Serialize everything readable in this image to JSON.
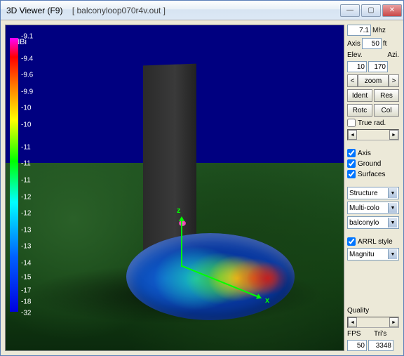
{
  "window": {
    "title": "3D Viewer (F9)",
    "filename": "[  balconyloop070r4v.out ]"
  },
  "colorbar": {
    "unit": "dBi",
    "gradient_stops": [
      {
        "pct": 0,
        "c": "#ff00ff"
      },
      {
        "pct": 7,
        "c": "#ff0000"
      },
      {
        "pct": 18,
        "c": "#ff8000"
      },
      {
        "pct": 30,
        "c": "#ffff00"
      },
      {
        "pct": 45,
        "c": "#00ff00"
      },
      {
        "pct": 60,
        "c": "#00ffff"
      },
      {
        "pct": 80,
        "c": "#0060ff"
      },
      {
        "pct": 100,
        "c": "#0000e0"
      }
    ],
    "ticks": [
      {
        "v": "-9.1",
        "p": 0
      },
      {
        "v": "-9.4",
        "p": 8
      },
      {
        "v": "-9.6",
        "p": 14
      },
      {
        "v": "-9.9",
        "p": 20
      },
      {
        "v": "-10",
        "p": 26
      },
      {
        "v": "-10",
        "p": 32
      },
      {
        "v": "-11",
        "p": 40
      },
      {
        "v": "-11",
        "p": 46
      },
      {
        "v": "-11",
        "p": 52
      },
      {
        "v": "-12",
        "p": 58
      },
      {
        "v": "-12",
        "p": 64
      },
      {
        "v": "-13",
        "p": 70
      },
      {
        "v": "-13",
        "p": 76
      },
      {
        "v": "-14",
        "p": 82
      },
      {
        "v": "-15",
        "p": 87
      },
      {
        "v": "-17",
        "p": 92
      },
      {
        "v": "-18",
        "p": 96
      },
      {
        "v": "-32",
        "p": 100
      }
    ]
  },
  "controls": {
    "freq": {
      "value": "7.1",
      "unit": "Mhz"
    },
    "axis": {
      "label": "Axis",
      "value": "50",
      "unit": "ft"
    },
    "elev": {
      "label": "Elev.",
      "value": "10"
    },
    "azi": {
      "label": "Azi.",
      "value": "170"
    },
    "zoom": {
      "left": "<",
      "mid": "zoom",
      "right": ">"
    },
    "ident": "Ident",
    "res": "Res",
    "rotc": "Rotc",
    "col": "Col",
    "truerad": {
      "label": "True rad.",
      "checked": false
    },
    "show_axis": {
      "label": "Axis",
      "checked": true
    },
    "show_ground": {
      "label": "Ground",
      "checked": true
    },
    "show_surfaces": {
      "label": "Surfaces",
      "checked": true
    },
    "structure": "Structure",
    "multicolor": "Multi-colo",
    "filename": "balconylo",
    "arrl": {
      "label": "ARRL style",
      "checked": true
    },
    "magnitude": "Magnitu",
    "quality": {
      "label": "Quality"
    },
    "fps": {
      "label": "FPS",
      "value": "50"
    },
    "tris": {
      "label": "Tri's",
      "value": "3348"
    }
  },
  "colors": {
    "sky": "#000080",
    "window_bg": "#ece9d8"
  }
}
